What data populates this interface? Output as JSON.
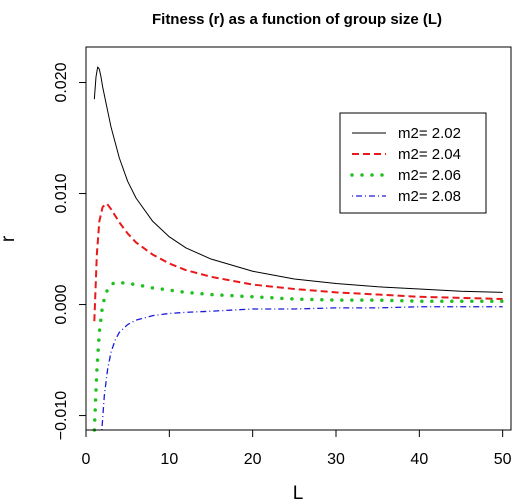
{
  "chart_data": {
    "type": "line",
    "title": "Fitness (r) as a function of group size (L)",
    "xlabel": "L",
    "ylabel": "r",
    "xlim": [
      0,
      51
    ],
    "ylim": [
      -0.0113,
      0.0232
    ],
    "xticks": [
      0,
      10,
      20,
      30,
      40,
      50
    ],
    "xtick_labels": [
      "0",
      "10",
      "20",
      "30",
      "40",
      "50"
    ],
    "yticks": [
      -0.01,
      0.0,
      0.01,
      0.02
    ],
    "ytick_labels": [
      "−0.010",
      "0.000",
      "0.010",
      "0.020"
    ],
    "grid": false,
    "legend_position": "top-right",
    "series": [
      {
        "name": "m2= 2.02",
        "color": "#000000",
        "dash": "solid",
        "x": [
          1.0,
          1.2,
          1.4,
          1.6,
          1.8,
          2.0,
          2.5,
          3,
          4,
          5,
          6,
          8,
          10,
          12,
          15,
          20,
          25,
          30,
          35,
          40,
          45,
          50
        ],
        "y": [
          0.0185,
          0.0205,
          0.0214,
          0.0212,
          0.0205,
          0.0196,
          0.0178,
          0.016,
          0.0132,
          0.0111,
          0.0096,
          0.0075,
          0.0061,
          0.0051,
          0.0041,
          0.003,
          0.0023,
          0.0019,
          0.0016,
          0.0014,
          0.0012,
          0.0011
        ]
      },
      {
        "name": "m2= 2.04",
        "color": "#e8191a",
        "dash": "dashed",
        "x": [
          1.0,
          1.3,
          1.6,
          2.0,
          2.5,
          3,
          4,
          5,
          6,
          8,
          10,
          12,
          15,
          20,
          25,
          30,
          35,
          40,
          45,
          50
        ],
        "y": [
          -0.0015,
          0.0045,
          0.0075,
          0.0088,
          0.0091,
          0.0086,
          0.0074,
          0.0064,
          0.0056,
          0.0045,
          0.0037,
          0.0031,
          0.0025,
          0.0018,
          0.0014,
          0.0011,
          0.0009,
          0.0007,
          0.0006,
          0.0005
        ]
      },
      {
        "name": "m2= 2.06",
        "color": "#1fc01f",
        "dash": "dotted",
        "x": [
          1.0,
          1.3,
          1.6,
          2.0,
          2.5,
          3,
          3.5,
          4,
          5,
          6,
          8,
          10,
          12,
          15,
          20,
          25,
          30,
          35,
          40,
          45,
          50
        ],
        "y": [
          -0.0113,
          -0.006,
          -0.0025,
          0.0,
          0.0012,
          0.0018,
          0.002,
          0.002,
          0.0019,
          0.0018,
          0.0015,
          0.0013,
          0.0011,
          0.0009,
          0.0007,
          0.0005,
          0.0004,
          0.0004,
          0.0003,
          0.0003,
          0.0003
        ]
      },
      {
        "name": "m2= 2.08",
        "color": "#1b1bdb",
        "dash": "dotdash",
        "x": [
          1.9,
          2.2,
          2.6,
          3,
          3.5,
          4,
          5,
          6,
          8,
          10,
          12,
          15,
          20,
          25,
          30,
          35,
          40,
          45,
          50
        ],
        "y": [
          -0.0113,
          -0.0082,
          -0.0058,
          -0.0043,
          -0.0032,
          -0.0025,
          -0.0018,
          -0.0014,
          -0.001,
          -0.0008,
          -0.0007,
          -0.0006,
          -0.0004,
          -0.0004,
          -0.0003,
          -0.0003,
          -0.0002,
          -0.0002,
          -0.0002
        ]
      }
    ]
  }
}
